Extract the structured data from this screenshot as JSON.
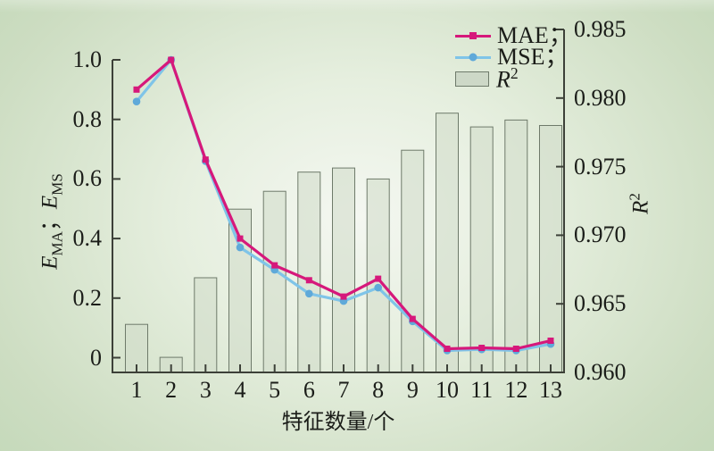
{
  "chart_data": {
    "type": "combo",
    "title": "",
    "categories": [
      "1",
      "2",
      "3",
      "4",
      "5",
      "6",
      "7",
      "8",
      "9",
      "10",
      "11",
      "12",
      "13"
    ],
    "xlabel": "特征数量/个",
    "grid": false,
    "left_axis": {
      "label_parts": {
        "e1": "E",
        "sub1": "MA",
        "sep": "；",
        "e2": "E",
        "sub2": "MS"
      },
      "range": [
        0,
        1.0
      ],
      "ticks": [
        0,
        0.2,
        0.4,
        0.6,
        0.8,
        1.0
      ],
      "tick_labels": [
        "0",
        "0.2",
        "0.4",
        "0.6",
        "0.8",
        "1.0"
      ]
    },
    "right_axis": {
      "label_parts": {
        "base": "R",
        "sup": "2"
      },
      "range": [
        0.96,
        0.985
      ],
      "ticks": [
        0.96,
        0.965,
        0.97,
        0.975,
        0.98,
        0.985
      ],
      "tick_labels": [
        "0.960",
        "0.965",
        "0.970",
        "0.975",
        "0.980",
        "0.985"
      ]
    },
    "legend": {
      "position": "top-right",
      "items": [
        {
          "label": "MAE；",
          "marker": "square",
          "color": "#d6187b"
        },
        {
          "label": "MSE；",
          "marker": "circle",
          "color": "#7fc4e8"
        },
        {
          "label_base": "R",
          "label_sup": "2",
          "swatch_fill": "#cdd8c7",
          "swatch_border": "#6e7a6a"
        }
      ]
    },
    "series": [
      {
        "name": "MAE",
        "type": "line",
        "axis": "left",
        "color": "#d6187b",
        "marker": "square",
        "marker_color": "#d6187b",
        "values": [
          0.9,
          1.0,
          0.665,
          0.4,
          0.31,
          0.26,
          0.205,
          0.265,
          0.13,
          0.03,
          0.033,
          0.03,
          0.057
        ]
      },
      {
        "name": "MSE",
        "type": "line",
        "axis": "left",
        "color": "#7fc4e8",
        "marker": "circle",
        "marker_color": "#5fa9d9",
        "values": [
          0.86,
          1.0,
          0.66,
          0.37,
          0.295,
          0.215,
          0.19,
          0.235,
          0.122,
          0.024,
          0.028,
          0.024,
          0.046
        ]
      },
      {
        "name": "R²",
        "type": "bar",
        "axis": "right",
        "fill": "#cfdac9",
        "fill_opacity": 0.55,
        "border": "#6e7a6a",
        "values": [
          0.9635,
          0.9611,
          0.9669,
          0.9719,
          0.9732,
          0.9746,
          0.9749,
          0.9741,
          0.9762,
          0.9789,
          0.9779,
          0.9784,
          0.978
        ]
      }
    ]
  },
  "colors": {
    "background_edge": "#bcd4b2",
    "background_center": "#f3f6f0",
    "axis": "#3c4038",
    "text": "#1b1d19"
  }
}
